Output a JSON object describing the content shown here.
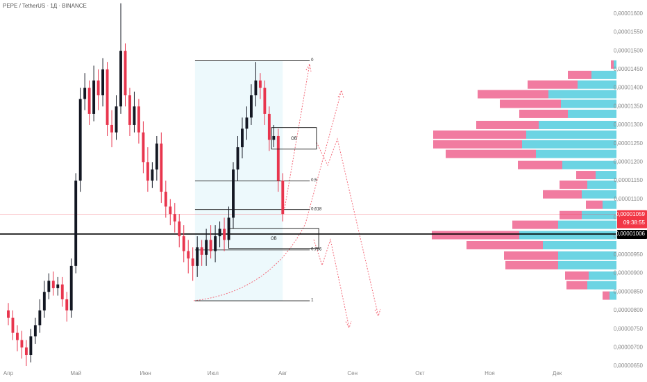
{
  "chart_data": [
    {
      "type": "candlestick",
      "title": "PEPE / TetherUS · 1Д · BINANCE",
      "x": [
        0,
        2,
        4,
        6,
        8,
        10,
        12,
        14,
        16,
        18,
        20,
        22,
        24,
        26,
        28,
        30,
        32,
        34,
        36,
        38,
        40,
        42,
        44,
        46,
        48,
        50,
        52,
        54,
        56,
        58,
        60,
        62,
        64,
        66,
        68,
        70,
        72,
        74,
        76,
        78,
        80,
        82,
        84,
        86,
        88,
        90,
        92,
        94,
        96,
        98,
        100,
        102,
        104,
        106,
        108,
        110,
        112,
        114,
        116,
        118,
        120,
        122
      ],
      "open": [
        8e-06,
        7.8e-06,
        7.4e-06,
        7.2e-06,
        7e-06,
        6.8e-06,
        7.3e-06,
        7.6e-06,
        8e-06,
        8.5e-06,
        8.8e-06,
        8.6e-06,
        8.7e-06,
        8.3e-06,
        8e-06,
        9.2e-06,
        1.15e-05,
        1.37e-05,
        1.4e-05,
        1.33e-05,
        1.42e-05,
        1.38e-05,
        1.45e-05,
        1.3e-05,
        1.28e-05,
        1.35e-05,
        1.5e-05,
        1.38e-05,
        1.3e-05,
        1.35e-05,
        1.28e-05,
        1.2e-05,
        1.15e-05,
        1.18e-05,
        1.25e-05,
        1.12e-05,
        1.08e-05,
        1.06e-05,
        1.04e-05,
        1e-05,
        9.6e-06,
        9.4e-06,
        9.2e-06,
        9.7e-06,
        9.5e-06,
        9.9e-06,
        9.6e-06,
        1e-05,
        1.02e-05,
        9.9e-06,
        1.05e-05,
        1.18e-05,
        1.24e-05,
        1.29e-05,
        1.32e-05,
        1.38e-05,
        1.42e-05,
        1.4e-05,
        1.33e-05,
        1.26e-05,
        1.27e-05,
        1.15e-05
      ],
      "high": [
        8.2e-06,
        8e-06,
        7.6e-06,
        7.45e-06,
        7.2e-06,
        7.5e-06,
        7.8e-06,
        8.3e-06,
        8.8e-06,
        9e-06,
        9.05e-06,
        8.9e-06,
        8.9e-06,
        8.5e-06,
        9.4e-06,
        1.17e-05,
        1.4e-05,
        1.44e-05,
        1.42e-05,
        1.46e-05,
        1.45e-05,
        1.48e-05,
        1.47e-05,
        1.34e-05,
        1.38e-05,
        1.628e-05,
        1.52e-05,
        1.4e-05,
        1.39e-05,
        1.37e-05,
        1.31e-05,
        1.24e-05,
        1.2e-05,
        1.27e-05,
        1.28e-05,
        1.15e-05,
        1.1e-05,
        1.09e-05,
        1.06e-05,
        1.03e-05,
        9.9e-06,
        9.7e-06,
        1e-05,
        9.9e-06,
        1.02e-05,
        1.03e-05,
        1.03e-05,
        1.04e-05,
        1.05e-05,
        1.08e-05,
        1.2e-05,
        1.27e-05,
        1.32e-05,
        1.35e-05,
        1.41e-05,
        1.47e-05,
        1.44e-05,
        1.42e-05,
        1.35e-05,
        1.3e-05,
        1.29e-05,
        1.17e-05
      ],
      "low": [
        7.6e-06,
        7.2e-06,
        6.9e-06,
        6.7e-06,
        6.5e-06,
        6.6e-06,
        7.1e-06,
        7.4e-06,
        7.8e-06,
        8.3e-06,
        8.4e-06,
        8.4e-06,
        8.1e-06,
        7.7e-06,
        7.8e-06,
        9e-06,
        1.12e-05,
        1.34e-05,
        1.3e-05,
        1.31e-05,
        1.34e-05,
        1.35e-05,
        1.27e-05,
        1.24e-05,
        1.26e-05,
        1.33e-05,
        1.35e-05,
        1.27e-05,
        1.28e-05,
        1.25e-05,
        1.17e-05,
        1.12e-05,
        1.13e-05,
        1.15e-05,
        1.09e-05,
        1.05e-05,
        1.03e-05,
        1.01e-05,
        9.7e-06,
        9.3e-06,
        9e-06,
        8.8e-06,
        8.9e-06,
        9.2e-06,
        9.2e-06,
        9.4e-06,
        9.3e-06,
        9.7e-06,
        9.6e-06,
        9.7e-06,
        1.02e-05,
        1.15e-05,
        1.21e-05,
        1.26e-05,
        1.3e-05,
        1.35e-05,
        1.37e-05,
        1.3e-05,
        1.23e-05,
        1.24e-05,
        1.12e-05,
        1.04e-05
      ],
      "close": [
        7.8e-06,
        7.4e-06,
        7.2e-06,
        7e-06,
        6.8e-06,
        7.3e-06,
        7.6e-06,
        8e-06,
        8.5e-06,
        8.8e-06,
        8.6e-06,
        8.7e-06,
        8.3e-06,
        8e-06,
        9.2e-06,
        1.15e-05,
        1.37e-05,
        1.4e-05,
        1.33e-05,
        1.42e-05,
        1.38e-05,
        1.45e-05,
        1.3e-05,
        1.28e-05,
        1.35e-05,
        1.5e-05,
        1.38e-05,
        1.3e-05,
        1.35e-05,
        1.28e-05,
        1.2e-05,
        1.15e-05,
        1.18e-05,
        1.25e-05,
        1.12e-05,
        1.08e-05,
        1.06e-05,
        1.04e-05,
        1e-05,
        9.6e-06,
        9.4e-06,
        9.2e-06,
        9.7e-06,
        9.5e-06,
        9.9e-06,
        9.6e-06,
        1e-05,
        1.02e-05,
        9.9e-06,
        1.05e-05,
        1.18e-05,
        1.24e-05,
        1.29e-05,
        1.32e-05,
        1.38e-05,
        1.42e-05,
        1.4e-05,
        1.33e-05,
        1.26e-05,
        1.27e-05,
        1.15e-05,
        1.06e-05
      ],
      "up_color": "#131722",
      "down_color": "#e8354d",
      "xlim": [
        -3.7,
        264.8
      ],
      "xticks": [
        {
          "value": 0,
          "label": "Апр"
        },
        {
          "value": 30,
          "label": "Май"
        },
        {
          "value": 61,
          "label": "Июн"
        },
        {
          "value": 91,
          "label": "Июл"
        },
        {
          "value": 122,
          "label": "Авг"
        },
        {
          "value": 153,
          "label": "Сен"
        },
        {
          "value": 183,
          "label": "Окт"
        },
        {
          "value": 214,
          "label": "Ноя"
        },
        {
          "value": 244,
          "label": "Дек"
        }
      ],
      "ylim": [
        6.07e-06,
        1.637e-05
      ],
      "yticks": [
        {
          "value": 1.6e-05,
          "label": "0,00001600"
        },
        {
          "value": 1.55e-05,
          "label": "0,00001550"
        },
        {
          "value": 1.5e-05,
          "label": "0,00001500"
        },
        {
          "value": 1.45e-05,
          "label": "0,00001450"
        },
        {
          "value": 1.4e-05,
          "label": "0,00001400"
        },
        {
          "value": 1.35e-05,
          "label": "0,00001350"
        },
        {
          "value": 1.3e-05,
          "label": "0,00001300"
        },
        {
          "value": 1.25e-05,
          "label": "0,00001250"
        },
        {
          "value": 1.2e-05,
          "label": "0,00001200"
        },
        {
          "value": 1.15e-05,
          "label": "0,00001150"
        },
        {
          "value": 1.1e-05,
          "label": "0,00001100"
        },
        {
          "value": 1.05e-05,
          "label": "0,00001050"
        },
        {
          "value": 1e-05,
          "label": "0,00001000"
        },
        {
          "value": 9.5e-06,
          "label": "0,00000950"
        },
        {
          "value": 9e-06,
          "label": "0,00000900"
        },
        {
          "value": 8.5e-06,
          "label": "0,00000850"
        },
        {
          "value": 8e-06,
          "label": "0,00000800"
        },
        {
          "value": 7.5e-06,
          "label": "0,00000750"
        },
        {
          "value": 7e-06,
          "label": "0,00000700"
        },
        {
          "value": 6.5e-06,
          "label": "0,00000650"
        }
      ],
      "price_lines": [
        {
          "value": 1.059e-05,
          "label": "0,00001059",
          "time": "09:38:55",
          "color": "#f23645"
        },
        {
          "value": 1.006e-05,
          "label": "0,00001006",
          "color": "#000000"
        }
      ],
      "fib": {
        "x": [
          83,
          134
        ],
        "levels": [
          {
            "value": 1.473e-05,
            "label": "0"
          },
          {
            "value": 1.149e-05,
            "label": "0,5"
          },
          {
            "value": 1.072e-05,
            "label": "0,618"
          },
          {
            "value": 9.63e-06,
            "label": "0,786"
          },
          {
            "value": 8.26e-06,
            "label": "1"
          }
        ]
      },
      "boxes": [
        {
          "label": "OB",
          "x": [
            117,
            137
          ],
          "y": [
            1.235e-05,
            1.293e-05
          ]
        },
        {
          "label": "OB",
          "x": [
            98,
            138
          ],
          "y": [
            9.67e-06,
            1.021e-05
          ]
        }
      ]
    },
    {
      "type": "volume_profile",
      "levels": [
        1.463e-05,
        1.435e-05,
        1.409e-05,
        1.383e-05,
        1.357e-05,
        1.33e-05,
        1.3e-05,
        1.274e-05,
        1.248e-05,
        1.222e-05,
        1.192e-05,
        1.165e-05,
        1.139e-05,
        1.113e-05,
        1.085e-05,
        1.057e-05,
        1.031e-05,
        1.003e-05,
        9.76e-06,
        9.48e-06,
        9.22e-06,
        8.94e-06,
        8.68e-06,
        8.4e-06
      ],
      "series": [
        {
          "color": "#5ccfe0",
          "values": [
            4,
            36,
            56,
            98,
            80,
            70,
            112,
            130,
            136,
            116,
            78,
            30,
            42,
            50,
            20,
            50,
            84,
            140,
            106,
            84,
            84,
            40,
            42,
            10
          ]
        },
        {
          "color": "#f06d96",
          "values": [
            4,
            34,
            72,
            102,
            88,
            70,
            90,
            134,
            128,
            130,
            64,
            28,
            40,
            56,
            24,
            32,
            66,
            126,
            110,
            78,
            76,
            34,
            30,
            10
          ]
        }
      ]
    }
  ]
}
